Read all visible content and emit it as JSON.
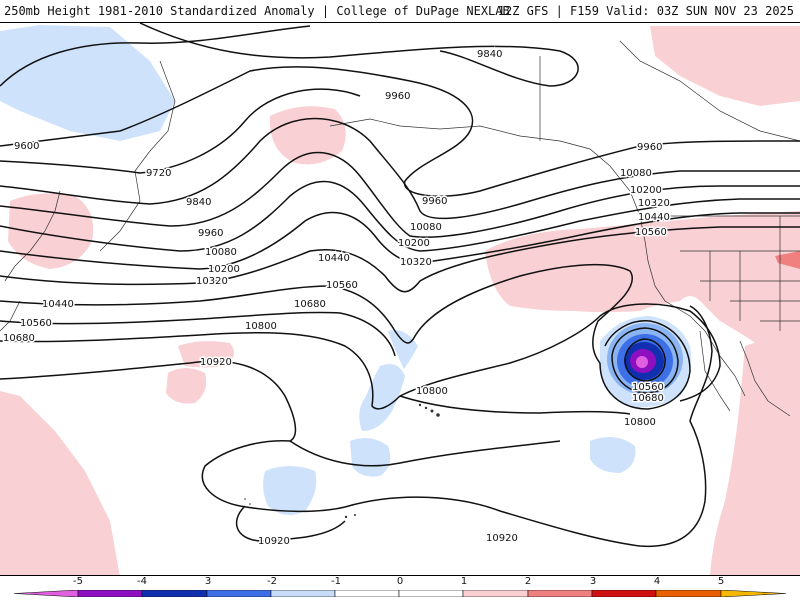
{
  "header": {
    "title": "250mb Height 1981-2010 Standardized Anomaly | College of DuPage NEXLAB",
    "run_info": "12Z GFS | F159 Valid: 03Z SUN NOV 23 2025"
  },
  "map": {
    "contour_labels": [
      "9840",
      "9960",
      "9600",
      "9720",
      "9840",
      "9960",
      "10080",
      "10200",
      "10320",
      "10440",
      "10560",
      "10680",
      "10800",
      "10920",
      "10440",
      "10560",
      "10680",
      "9960",
      "10080",
      "10200",
      "10320",
      "10800",
      "10920",
      "9960",
      "10080",
      "10200",
      "10320",
      "10440",
      "10560",
      "10560",
      "10680",
      "10800",
      "10920"
    ]
  },
  "legend": {
    "ticks": [
      "-5",
      "-4",
      "3",
      "-2",
      "-1",
      "0",
      "1",
      "2",
      "3",
      "4",
      "5"
    ],
    "colors": [
      "#e060e0",
      "#8e0fc0",
      "#1030b0",
      "#3d6fe6",
      "#c8dcfa",
      "#ffffff",
      "#f9cfd2",
      "#f08080",
      "#d01010",
      "#e86000",
      "#f5b800"
    ]
  }
}
